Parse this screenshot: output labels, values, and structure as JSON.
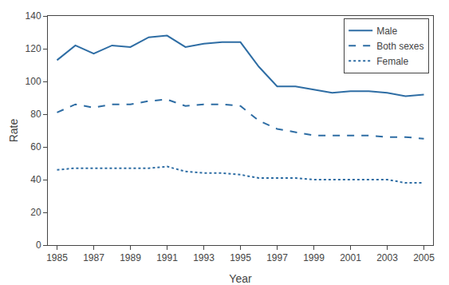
{
  "chart_data": {
    "type": "line",
    "x": [
      1985,
      1986,
      1987,
      1988,
      1989,
      1990,
      1991,
      1992,
      1993,
      1994,
      1995,
      1996,
      1997,
      1998,
      1999,
      2000,
      2001,
      2002,
      2003,
      2004,
      2005
    ],
    "series": [
      {
        "name": "Male",
        "color": "#2E6DA4",
        "line_style": "solid",
        "values": [
          113,
          122,
          117,
          122,
          121,
          127,
          128,
          121,
          123,
          124,
          124,
          109,
          97,
          97,
          95,
          93,
          94,
          94,
          93,
          91,
          92
        ]
      },
      {
        "name": "Both sexes",
        "color": "#2E6DA4",
        "line_style": "dashed",
        "values": [
          81,
          86,
          84,
          86,
          86,
          88,
          89,
          85,
          86,
          86,
          85,
          76,
          71,
          69,
          67,
          67,
          67,
          67,
          66,
          66,
          65
        ]
      },
      {
        "name": "Female",
        "color": "#2E6DA4",
        "line_style": "dotted",
        "values": [
          46,
          47,
          47,
          47,
          47,
          47,
          48,
          45,
          44,
          44,
          43,
          41,
          41,
          41,
          40,
          40,
          40,
          40,
          40,
          38,
          38
        ]
      }
    ],
    "xlabel": "Year",
    "ylabel": "Rate",
    "xlim": [
      1984.5,
      2005.5
    ],
    "xticks": [
      1985,
      1987,
      1989,
      1991,
      1993,
      1995,
      1997,
      1999,
      2001,
      2003,
      2005
    ],
    "ylim": [
      0,
      140
    ],
    "yticks": [
      0,
      20,
      40,
      60,
      80,
      100,
      120,
      140
    ],
    "grid": false,
    "legend": "upper right"
  }
}
